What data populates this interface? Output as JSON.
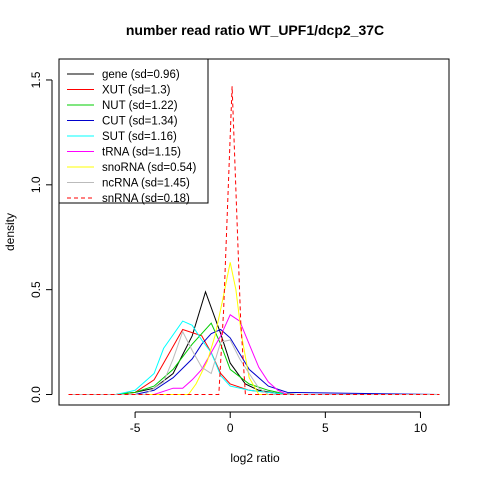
{
  "chart_data": {
    "type": "line",
    "title": "number read ratio WT_UPF1/dcp2_37C",
    "xlabel": "log2 ratio",
    "ylabel": "density",
    "xlim": [
      -9,
      11.5
    ],
    "ylim": [
      -0.05,
      1.6
    ],
    "xticks": [
      -5,
      0,
      5,
      10
    ],
    "yticks": [
      0.0,
      0.5,
      1.0,
      1.5
    ],
    "xtick_labels": [
      "-5",
      "0",
      "5",
      "10"
    ],
    "ytick_labels": [
      "0.0",
      "0.5",
      "1.0",
      "1.5"
    ],
    "grid": false,
    "legend_position": "top-left",
    "series": [
      {
        "name": "gene (sd=0.96)",
        "color": "#000000",
        "dash": false,
        "x": [
          -8.5,
          -6.0,
          -5.0,
          -4.0,
          -3.0,
          -2.0,
          -1.3,
          -0.5,
          0.0,
          0.8,
          1.5,
          2.5,
          3.5,
          11.0
        ],
        "y": [
          0.0,
          0.0,
          0.01,
          0.03,
          0.1,
          0.28,
          0.49,
          0.29,
          0.15,
          0.05,
          0.02,
          0.005,
          0.0,
          0.0
        ]
      },
      {
        "name": "XUT (sd=1.3)",
        "color": "#ff0000",
        "dash": false,
        "x": [
          -8.5,
          -6.0,
          -5.0,
          -4.0,
          -3.5,
          -2.5,
          -1.5,
          -1.0,
          -0.5,
          0.0,
          1.0,
          2.0,
          3.0,
          11.0
        ],
        "y": [
          0.0,
          0.0,
          0.01,
          0.07,
          0.15,
          0.31,
          0.28,
          0.2,
          0.1,
          0.05,
          0.02,
          0.01,
          0.0,
          0.0
        ]
      },
      {
        "name": "NUT (sd=1.22)",
        "color": "#00cc00",
        "dash": false,
        "x": [
          -8.5,
          -6.0,
          -5.0,
          -4.0,
          -3.0,
          -2.0,
          -1.5,
          -1.0,
          -0.5,
          0.0,
          1.0,
          2.0,
          3.0,
          11.0
        ],
        "y": [
          0.0,
          0.0,
          0.01,
          0.04,
          0.12,
          0.24,
          0.29,
          0.34,
          0.24,
          0.12,
          0.05,
          0.02,
          0.0,
          0.0
        ]
      },
      {
        "name": "CUT (sd=1.34)",
        "color": "#0000cc",
        "dash": false,
        "x": [
          -8.5,
          -5.0,
          -4.0,
          -3.0,
          -2.0,
          -1.5,
          -1.0,
          -0.5,
          0.0,
          1.0,
          2.0,
          3.0,
          11.0
        ],
        "y": [
          0.0,
          0.0,
          0.02,
          0.08,
          0.17,
          0.24,
          0.29,
          0.31,
          0.27,
          0.12,
          0.04,
          0.01,
          0.0
        ]
      },
      {
        "name": "SUT (sd=1.16)",
        "color": "#00ffff",
        "dash": false,
        "x": [
          -8.5,
          -6.0,
          -5.0,
          -4.0,
          -3.5,
          -2.5,
          -2.0,
          -1.5,
          -1.0,
          -0.5,
          0.0,
          1.0,
          2.0,
          3.0,
          11.0
        ],
        "y": [
          0.0,
          0.0,
          0.02,
          0.1,
          0.22,
          0.35,
          0.33,
          0.26,
          0.2,
          0.09,
          0.04,
          0.02,
          0.01,
          0.0,
          0.0
        ]
      },
      {
        "name": "tRNA (sd=1.15)",
        "color": "#ff00ff",
        "dash": false,
        "x": [
          -8.5,
          -4.0,
          -3.0,
          -2.5,
          -2.0,
          -1.5,
          -1.0,
          -0.5,
          0.0,
          0.5,
          1.0,
          1.5,
          2.0,
          2.5,
          3.0,
          11.0
        ],
        "y": [
          0.0,
          0.0,
          0.03,
          0.03,
          0.07,
          0.12,
          0.2,
          0.28,
          0.38,
          0.35,
          0.24,
          0.13,
          0.06,
          0.02,
          0.0,
          0.0
        ]
      },
      {
        "name": "snoRNA (sd=0.54)",
        "color": "#ffff00",
        "dash": false,
        "x": [
          -8.5,
          -2.2,
          -1.8,
          -1.2,
          -0.8,
          -0.4,
          0.0,
          0.3,
          0.6,
          1.0,
          1.5,
          11.0
        ],
        "y": [
          0.0,
          0.0,
          0.05,
          0.16,
          0.28,
          0.45,
          0.63,
          0.5,
          0.28,
          0.08,
          0.0,
          0.0
        ]
      },
      {
        "name": "ncRNA (sd=1.45)",
        "color": "#bbbbbb",
        "dash": false,
        "x": [
          -8.5,
          -4.5,
          -3.5,
          -3.0,
          -2.5,
          -2.0,
          -1.5,
          -1.0,
          -0.5,
          0.0,
          0.5,
          1.0,
          1.5,
          2.0,
          11.0
        ],
        "y": [
          0.0,
          0.0,
          0.06,
          0.17,
          0.3,
          0.21,
          0.13,
          0.1,
          0.25,
          0.26,
          0.17,
          0.1,
          0.03,
          0.0,
          0.0
        ]
      },
      {
        "name": "snRNA (sd=0.18)",
        "color": "#ff0000",
        "dash": true,
        "x": [
          -8.5,
          -0.6,
          -0.35,
          0.1,
          0.55,
          0.8,
          11.0
        ],
        "y": [
          0.0,
          0.0,
          0.4,
          1.47,
          0.35,
          0.0,
          0.0
        ]
      }
    ]
  }
}
